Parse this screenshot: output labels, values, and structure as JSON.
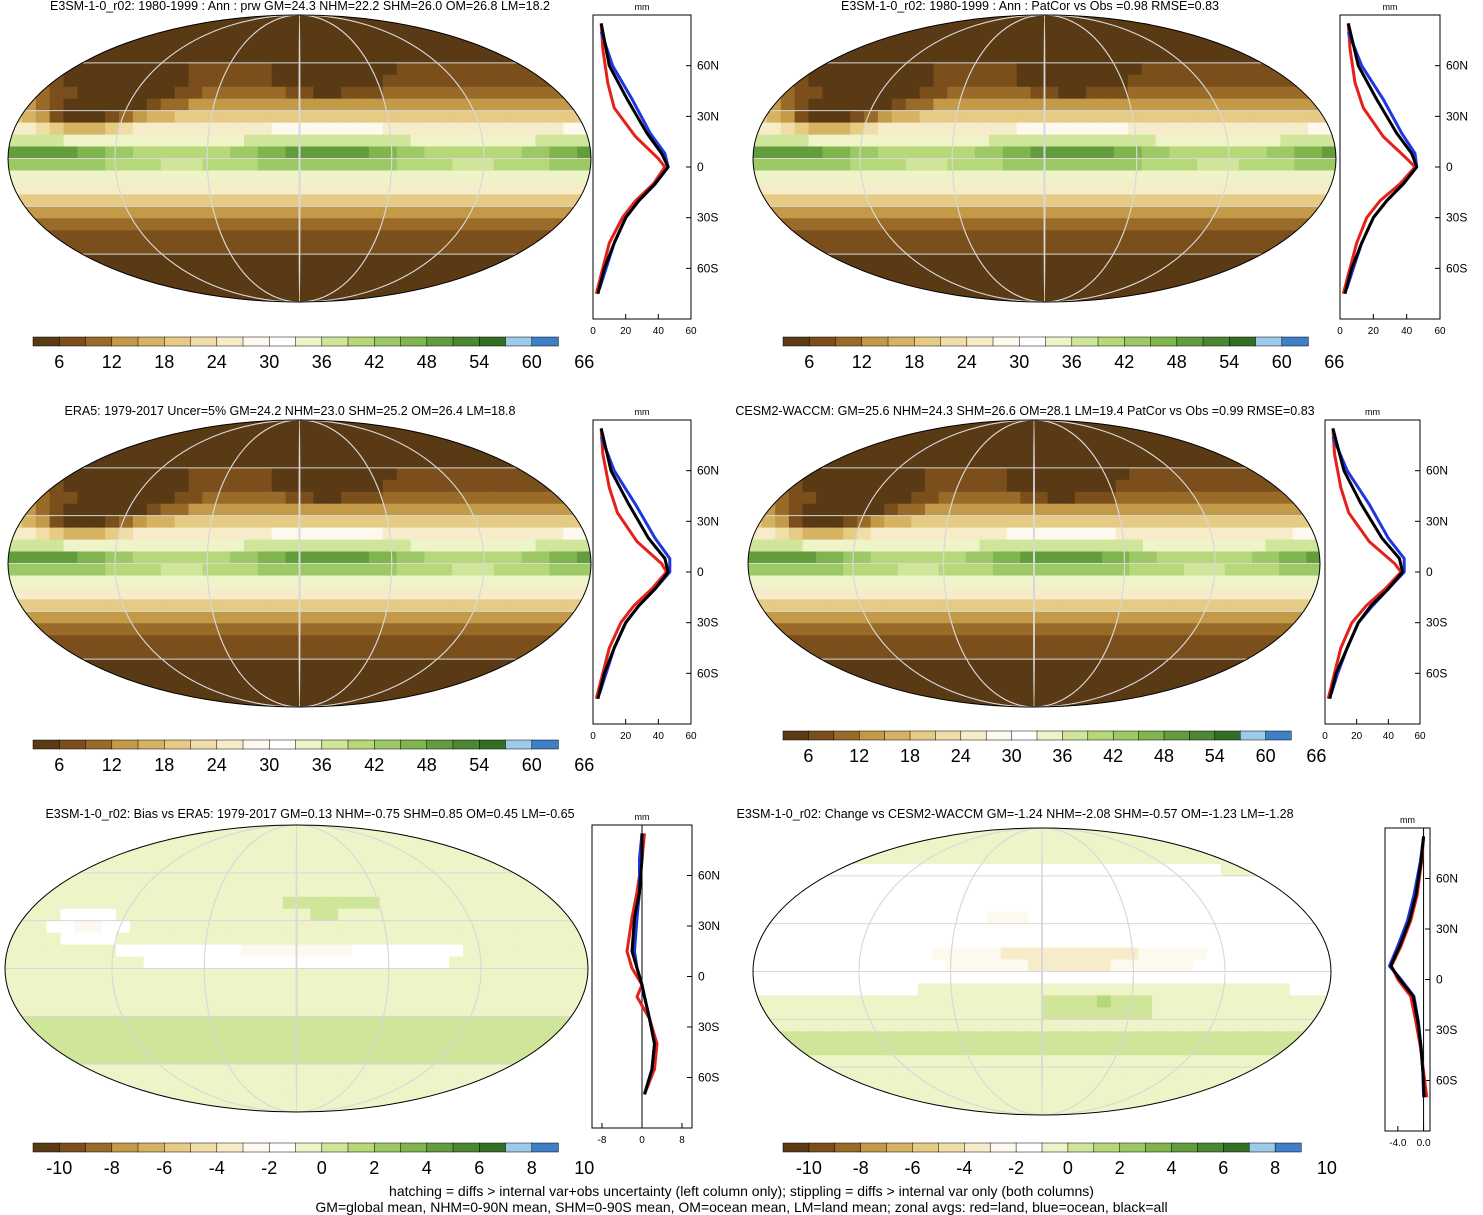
{
  "colormaps": {
    "precip": [
      "#5a3a14",
      "#7a4f1c",
      "#9a6a28",
      "#c39a48",
      "#d6b362",
      "#e6cb85",
      "#f0dda8",
      "#f7ecca",
      "#fdf9ef",
      "#ffffff",
      "#eef3c8",
      "#cfe59a",
      "#b6d879",
      "#9cc866",
      "#80b44d",
      "#639c3d",
      "#4c8733",
      "#336e26",
      "#9ccbe8",
      "#3f7fc6"
    ],
    "diff": [
      "#5a3a14",
      "#7a4f1c",
      "#9a6a28",
      "#c39a48",
      "#d6b362",
      "#e6cb85",
      "#f0dda8",
      "#f7ecca",
      "#fdf9ef",
      "#ffffff",
      "#eef3c8",
      "#cfe59a",
      "#b6d879",
      "#9cc866",
      "#80b44d",
      "#639c3d",
      "#4c8733",
      "#336e26",
      "#9ccbe8",
      "#3f7fc6"
    ]
  },
  "zonal_colors": {
    "land": "#e5211b",
    "ocean": "#1f37e0",
    "all": "#000000"
  },
  "chart_data": [
    {
      "type": "heatmap",
      "title": "E3SM-1-0_r02: 1980-1999 : Ann : prw GM=24.3 NHM=22.2 SHM=26.0 OM=26.8 LM=18.2",
      "palette": "precip",
      "style": "mean",
      "colorbar_labels": [
        "6",
        "12",
        "18",
        "24",
        "30",
        "36",
        "42",
        "48",
        "54",
        "60",
        "66"
      ],
      "zonal": {
        "unit": "mm",
        "lat_labels": [
          "60N",
          "30N",
          "0",
          "30S",
          "60S"
        ],
        "x_ticks": [
          "0",
          "20",
          "40",
          "60"
        ],
        "xlim": [
          0,
          60
        ],
        "land": [
          [
            5,
            85
          ],
          [
            6,
            70
          ],
          [
            9,
            50
          ],
          [
            13,
            35
          ],
          [
            26,
            18
          ],
          [
            40,
            5
          ],
          [
            44,
            0
          ],
          [
            37,
            -10
          ],
          [
            26,
            -20
          ],
          [
            18,
            -30
          ],
          [
            10,
            -45
          ],
          [
            6,
            -60
          ],
          [
            2,
            -75
          ]
        ],
        "ocean": [
          [
            5,
            80
          ],
          [
            12,
            60
          ],
          [
            24,
            40
          ],
          [
            35,
            20
          ],
          [
            44,
            8
          ],
          [
            46,
            0
          ],
          [
            38,
            -10
          ],
          [
            28,
            -20
          ],
          [
            20,
            -30
          ],
          [
            13,
            -45
          ],
          [
            8,
            -60
          ],
          [
            4,
            -72
          ]
        ],
        "all": [
          [
            5,
            85
          ],
          [
            10,
            60
          ],
          [
            21,
            40
          ],
          [
            33,
            20
          ],
          [
            42,
            8
          ],
          [
            46,
            0
          ],
          [
            38,
            -10
          ],
          [
            28,
            -20
          ],
          [
            20,
            -30
          ],
          [
            13,
            -45
          ],
          [
            7,
            -60
          ],
          [
            3,
            -75
          ]
        ]
      }
    },
    {
      "type": "heatmap",
      "title": "E3SM-1-0_r02: 1980-1999 : Ann : PatCor vs Obs =0.98 RMSE=0.83",
      "palette": "precip",
      "style": "mean",
      "colorbar_labels": [
        "6",
        "12",
        "18",
        "24",
        "30",
        "36",
        "42",
        "48",
        "54",
        "60",
        "66"
      ],
      "zonal": {
        "unit": "mm",
        "lat_labels": [
          "60N",
          "30N",
          "0",
          "30S",
          "60S"
        ],
        "x_ticks": [
          "0",
          "20",
          "40",
          "60"
        ],
        "xlim": [
          0,
          60
        ],
        "land": [
          [
            5,
            85
          ],
          [
            6,
            70
          ],
          [
            9,
            50
          ],
          [
            14,
            35
          ],
          [
            26,
            18
          ],
          [
            40,
            5
          ],
          [
            45,
            0
          ],
          [
            36,
            -10
          ],
          [
            24,
            -20
          ],
          [
            16,
            -30
          ],
          [
            10,
            -45
          ],
          [
            6,
            -60
          ],
          [
            2,
            -75
          ]
        ],
        "ocean": [
          [
            5,
            80
          ],
          [
            13,
            60
          ],
          [
            26,
            40
          ],
          [
            37,
            20
          ],
          [
            45,
            8
          ],
          [
            46,
            0
          ],
          [
            38,
            -10
          ],
          [
            28,
            -20
          ],
          [
            20,
            -30
          ],
          [
            13,
            -45
          ],
          [
            8,
            -60
          ],
          [
            4,
            -72
          ]
        ],
        "all": [
          [
            5,
            85
          ],
          [
            11,
            60
          ],
          [
            22,
            40
          ],
          [
            34,
            20
          ],
          [
            43,
            8
          ],
          [
            46,
            0
          ],
          [
            38,
            -10
          ],
          [
            28,
            -20
          ],
          [
            20,
            -30
          ],
          [
            13,
            -45
          ],
          [
            7,
            -60
          ],
          [
            3,
            -75
          ]
        ]
      }
    },
    {
      "type": "heatmap",
      "title": "ERA5: 1979-2017 Uncer=5% GM=24.2 NHM=23.0 SHM=25.2 OM=26.4 LM=18.8",
      "palette": "precip",
      "style": "mean",
      "colorbar_labels": [
        "6",
        "12",
        "18",
        "24",
        "30",
        "36",
        "42",
        "48",
        "54",
        "60",
        "66"
      ],
      "zonal": {
        "unit": "mm",
        "lat_labels": [
          "60N",
          "30N",
          "0",
          "30S",
          "60S"
        ],
        "x_ticks": [
          "0",
          "20",
          "40",
          "60"
        ],
        "xlim": [
          0,
          60
        ],
        "land": [
          [
            5,
            85
          ],
          [
            6,
            70
          ],
          [
            10,
            50
          ],
          [
            15,
            35
          ],
          [
            27,
            18
          ],
          [
            42,
            5
          ],
          [
            45,
            0
          ],
          [
            36,
            -10
          ],
          [
            25,
            -20
          ],
          [
            17,
            -30
          ],
          [
            10,
            -45
          ],
          [
            6,
            -60
          ],
          [
            2,
            -75
          ]
        ],
        "ocean": [
          [
            5,
            80
          ],
          [
            13,
            60
          ],
          [
            26,
            40
          ],
          [
            38,
            20
          ],
          [
            47,
            8
          ],
          [
            47,
            0
          ],
          [
            38,
            -10
          ],
          [
            28,
            -20
          ],
          [
            20,
            -30
          ],
          [
            13,
            -45
          ],
          [
            8,
            -60
          ],
          [
            4,
            -72
          ]
        ],
        "all": [
          [
            5,
            85
          ],
          [
            11,
            60
          ],
          [
            22,
            40
          ],
          [
            34,
            20
          ],
          [
            44,
            8
          ],
          [
            46,
            0
          ],
          [
            38,
            -10
          ],
          [
            28,
            -20
          ],
          [
            20,
            -30
          ],
          [
            13,
            -45
          ],
          [
            7,
            -60
          ],
          [
            3,
            -75
          ]
        ]
      }
    },
    {
      "type": "heatmap",
      "title": "CESM2-WACCM: GM=25.6 NHM=24.3 SHM=26.6 OM=28.1 LM=19.4 PatCor vs Obs =0.99 RMSE=0.83",
      "palette": "precip",
      "style": "mean",
      "colorbar_labels": [
        "6",
        "12",
        "18",
        "24",
        "30",
        "36",
        "42",
        "48",
        "54",
        "60",
        "66"
      ],
      "zonal": {
        "unit": "mm",
        "lat_labels": [
          "60N",
          "30N",
          "0",
          "30S",
          "60S"
        ],
        "x_ticks": [
          "0",
          "20",
          "40",
          "60"
        ],
        "xlim": [
          0,
          60
        ],
        "land": [
          [
            5,
            85
          ],
          [
            6,
            70
          ],
          [
            10,
            50
          ],
          [
            15,
            35
          ],
          [
            28,
            18
          ],
          [
            44,
            5
          ],
          [
            48,
            0
          ],
          [
            38,
            -10
          ],
          [
            26,
            -20
          ],
          [
            17,
            -30
          ],
          [
            10,
            -45
          ],
          [
            6,
            -60
          ],
          [
            2,
            -75
          ]
        ],
        "ocean": [
          [
            5,
            80
          ],
          [
            14,
            60
          ],
          [
            28,
            40
          ],
          [
            40,
            20
          ],
          [
            50,
            8
          ],
          [
            50,
            0
          ],
          [
            40,
            -10
          ],
          [
            30,
            -20
          ],
          [
            21,
            -30
          ],
          [
            14,
            -45
          ],
          [
            8,
            -60
          ],
          [
            4,
            -72
          ]
        ],
        "all": [
          [
            5,
            85
          ],
          [
            12,
            60
          ],
          [
            23,
            40
          ],
          [
            36,
            20
          ],
          [
            47,
            8
          ],
          [
            49,
            0
          ],
          [
            40,
            -10
          ],
          [
            29,
            -20
          ],
          [
            21,
            -30
          ],
          [
            14,
            -45
          ],
          [
            7,
            -60
          ],
          [
            3,
            -75
          ]
        ]
      }
    },
    {
      "type": "heatmap",
      "title": "E3SM-1-0_r02: Bias vs ERA5: 1979-2017 GM=0.13 NHM=-0.75 SHM=0.85 OM=0.45 LM=-0.65",
      "palette": "diff",
      "style": "bias",
      "colorbar_labels": [
        "-10",
        "-8",
        "-6",
        "-4",
        "-2",
        "0",
        "2",
        "4",
        "6",
        "8",
        "10"
      ],
      "zonal": {
        "unit": "mm",
        "lat_labels": [
          "60N",
          "30N",
          "0",
          "30S",
          "60S"
        ],
        "x_ticks": [
          "-8",
          "0",
          "8"
        ],
        "xlim": [
          -10,
          10
        ],
        "land": [
          [
            0.5,
            85
          ],
          [
            0,
            70
          ],
          [
            -1,
            50
          ],
          [
            -2,
            35
          ],
          [
            -3,
            15
          ],
          [
            -2,
            5
          ],
          [
            0,
            -5
          ],
          [
            -1,
            -12
          ],
          [
            1.5,
            -25
          ],
          [
            3,
            -40
          ],
          [
            2.5,
            -55
          ],
          [
            0.5,
            -70
          ]
        ],
        "ocean": [
          [
            0,
            85
          ],
          [
            -0.5,
            70
          ],
          [
            -0.5,
            50
          ],
          [
            -1,
            35
          ],
          [
            -1.5,
            15
          ],
          [
            -1,
            5
          ],
          [
            0,
            -5
          ],
          [
            0.5,
            -12
          ],
          [
            1.5,
            -25
          ],
          [
            2.5,
            -40
          ],
          [
            2,
            -55
          ],
          [
            0.5,
            -70
          ]
        ],
        "all": [
          [
            0,
            85
          ],
          [
            0,
            70
          ],
          [
            -0.5,
            50
          ],
          [
            -1.5,
            35
          ],
          [
            -2,
            15
          ],
          [
            -1,
            5
          ],
          [
            0,
            -5
          ],
          [
            0.5,
            -12
          ],
          [
            1.5,
            -25
          ],
          [
            2.5,
            -40
          ],
          [
            2,
            -55
          ],
          [
            0.5,
            -70
          ]
        ]
      }
    },
    {
      "type": "heatmap",
      "title": "E3SM-1-0_r02: Change vs CESM2-WACCM GM=-1.24 NHM=-2.08 SHM=-0.57 OM=-1.23 LM=-1.28",
      "palette": "diff",
      "style": "change",
      "colorbar_labels": [
        "-10",
        "-8",
        "-6",
        "-4",
        "-2",
        "0",
        "2",
        "4",
        "6",
        "8",
        "10"
      ],
      "zonal": {
        "unit": "mm",
        "lat_labels": [
          "60N",
          "30N",
          "0",
          "30S",
          "60S"
        ],
        "x_ticks": [
          "-4.0",
          "0.0"
        ],
        "xlim": [
          -6,
          1
        ],
        "land": [
          [
            0,
            85
          ],
          [
            -0.3,
            70
          ],
          [
            -1,
            50
          ],
          [
            -2,
            35
          ],
          [
            -3.5,
            20
          ],
          [
            -5,
            8
          ],
          [
            -4,
            0
          ],
          [
            -2,
            -10
          ],
          [
            -1.2,
            -25
          ],
          [
            -0.5,
            -40
          ],
          [
            0,
            -55
          ],
          [
            0.5,
            -70
          ]
        ],
        "ocean": [
          [
            0,
            85
          ],
          [
            -0.5,
            70
          ],
          [
            -1.5,
            50
          ],
          [
            -2.5,
            35
          ],
          [
            -4,
            20
          ],
          [
            -5.3,
            8
          ],
          [
            -3.5,
            0
          ],
          [
            -1.5,
            -10
          ],
          [
            -0.8,
            -25
          ],
          [
            -0.4,
            -40
          ],
          [
            -0.1,
            -55
          ],
          [
            0,
            -70
          ]
        ],
        "all": [
          [
            0,
            85
          ],
          [
            -0.4,
            70
          ],
          [
            -1.2,
            50
          ],
          [
            -2.2,
            35
          ],
          [
            -3.7,
            20
          ],
          [
            -5.1,
            8
          ],
          [
            -3.7,
            0
          ],
          [
            -1.6,
            -10
          ],
          [
            -0.9,
            -25
          ],
          [
            -0.4,
            -40
          ],
          [
            -0.1,
            -55
          ],
          [
            0.1,
            -70
          ]
        ]
      }
    }
  ],
  "footer": {
    "line1": "hatching = diffs > internal var+obs uncertainty (left column only); stippling = diffs > internal var only (both columns)",
    "line2": "GM=global mean, NHM=0-90N mean, SHM=0-90S mean, OM=ocean mean, LM=land mean; zonal avgs: red=land, blue=ocean, black=all"
  }
}
